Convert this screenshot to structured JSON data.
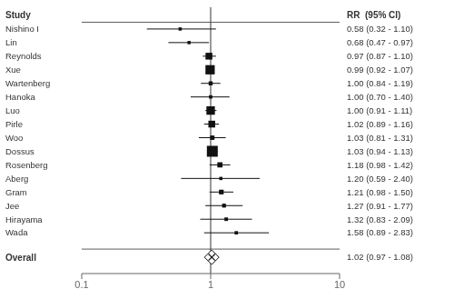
{
  "chart_data": {
    "type": "forest",
    "log": "x",
    "xlim": [
      0.1,
      10
    ],
    "xticks": [
      0.1,
      1,
      10
    ],
    "reference_x": 1,
    "grid": false,
    "color": "#111111",
    "header_study": "Study",
    "header_rr": "RR  (95% CI)",
    "categories": [
      "Nishino I",
      "Lin",
      "Reynolds",
      "Xue",
      "Wartenberg",
      "Hanoka",
      "Luo",
      "Pirle",
      "Woo",
      "Dossus",
      "Rosenberg",
      "Aberg",
      "Gram",
      "Jee",
      "Hirayama",
      "Wada"
    ],
    "values": [
      0.58,
      0.68,
      0.97,
      0.99,
      1.0,
      1.0,
      1.0,
      1.02,
      1.03,
      1.03,
      1.18,
      1.2,
      1.21,
      1.27,
      1.32,
      1.58
    ],
    "ci_low": [
      0.32,
      0.47,
      0.87,
      0.92,
      0.84,
      0.7,
      0.91,
      0.89,
      0.81,
      0.94,
      0.98,
      0.59,
      0.98,
      0.91,
      0.83,
      0.89
    ],
    "ci_high": [
      1.1,
      0.97,
      1.1,
      1.07,
      1.19,
      1.4,
      1.11,
      1.16,
      1.31,
      1.13,
      1.42,
      2.4,
      1.5,
      1.77,
      2.09,
      2.83
    ],
    "value_labels": [
      "0.58 (0.32 - 1.10)",
      "0.68 (0.47 - 0.97)",
      "0.97 (0.87 - 1.10)",
      "0.99 (0.92 - 1.07)",
      "1.00 (0.84 - 1.19)",
      "1.00 (0.70 - 1.40)",
      "1.00 (0.91 - 1.11)",
      "1.02 (0.89 - 1.16)",
      "1.03 (0.81 - 1.31)",
      "1.03 (0.94 - 1.13)",
      "1.18 (0.98 - 1.42)",
      "1.20 (0.59 - 2.40)",
      "1.21 (0.98 - 1.50)",
      "1.27 (0.91 - 1.77)",
      "1.32 (0.83 - 2.09)",
      "1.58 (0.89 - 2.83)"
    ],
    "weights": [
      0.3,
      0.3,
      2.5,
      4.0,
      0.8,
      0.4,
      3.5,
      2.5,
      1.0,
      5.0,
      1.5,
      0.3,
      1.2,
      0.7,
      0.5,
      0.4
    ],
    "overall": {
      "name": "Overall",
      "value": 1.02,
      "value_label": "1.02 (0.97 - 1.08)",
      "color": "#ffffff"
    }
  }
}
